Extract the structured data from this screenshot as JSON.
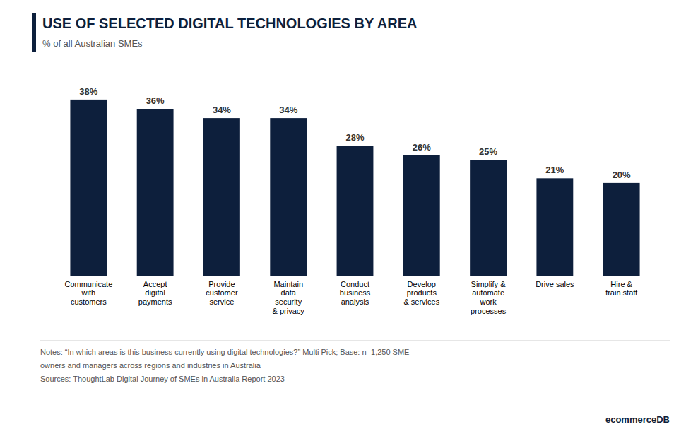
{
  "chart_data": {
    "type": "bar",
    "title": "USE OF SELECTED DIGITAL TECHNOLOGIES BY AREA",
    "subtitle": "% of all Australian SMEs",
    "categories": [
      "Communicate\nwith\ncustomers",
      "Accept\ndigital\npayments",
      "Provide\ncustomer\nservice",
      "Maintain\ndata\nsecurity\n& privacy",
      "Conduct\nbusiness\nanalysis",
      "Develop\nproducts\n& services",
      "Simplify &\nautomate\nwork\nprocesses",
      "Drive sales",
      "Hire &\ntrain staff"
    ],
    "values": [
      38,
      36,
      34,
      34,
      28,
      26,
      25,
      21,
      20
    ],
    "value_labels": [
      "38%",
      "36%",
      "34%",
      "34%",
      "28%",
      "26%",
      "25%",
      "21%",
      "20%"
    ],
    "data_labels": true,
    "color": "#0d1f3c",
    "ylim": [
      0,
      45
    ],
    "tick_labels": "x",
    "grid": false,
    "annotations": [
      "Notes: “In which areas is this business currently using digital technologies?” Multi Pick; Base: n=1,250 SME",
      "owners and managers across regions and industries in Australia",
      "Sources: ThoughtLab Digital Journey of SMEs in Australia Report 2023",
      "ecommerceDB"
    ]
  }
}
